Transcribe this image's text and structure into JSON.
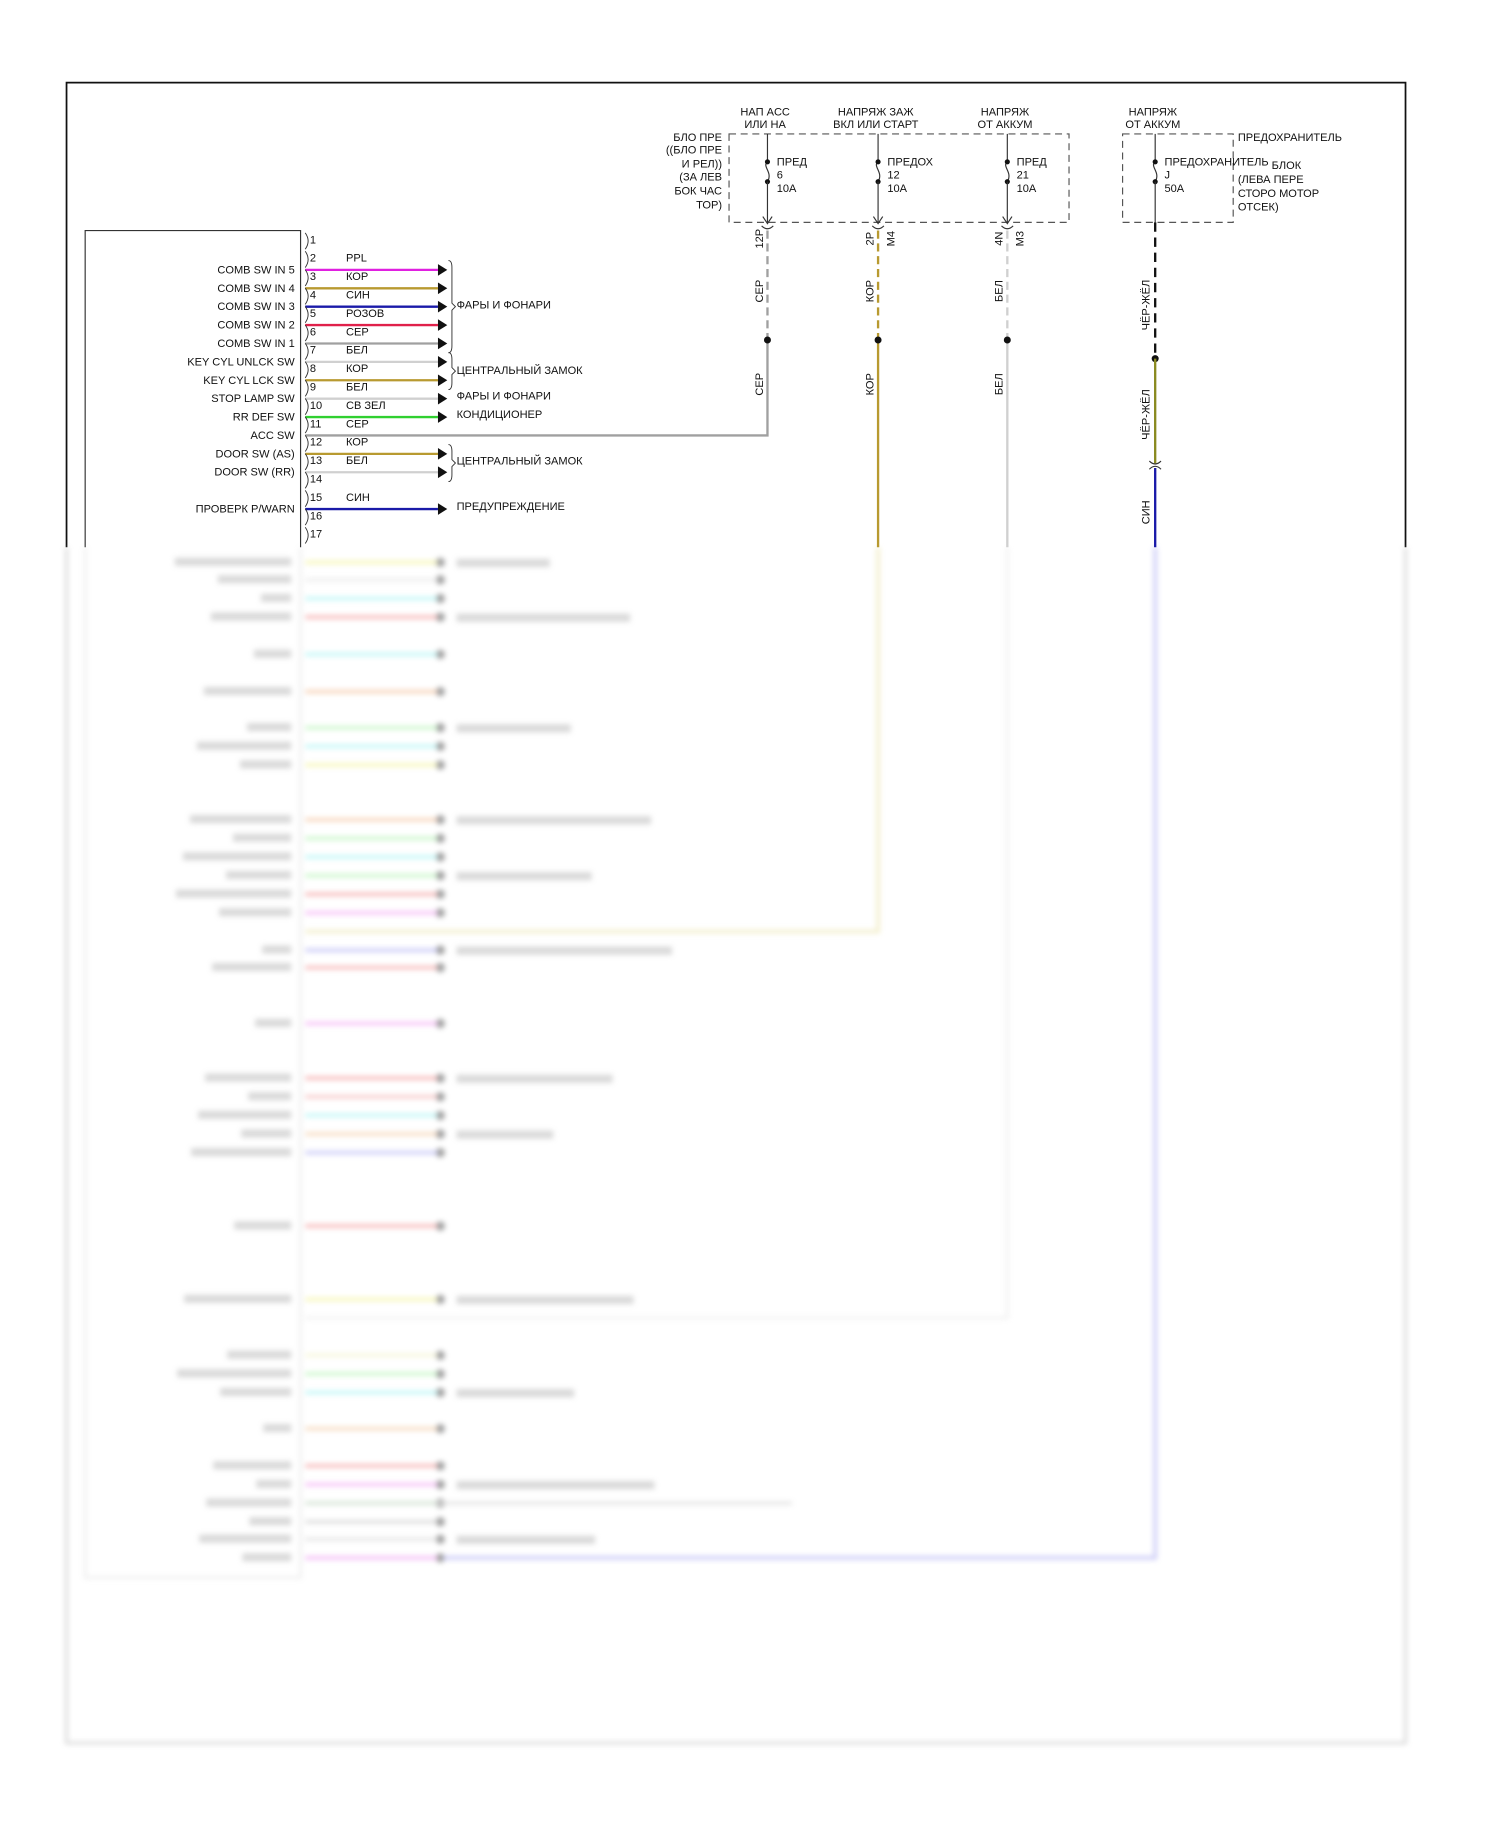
{
  "colors": {
    "ppl": "#e020e0",
    "kor": "#b89a30",
    "sin": "#1a1aa8",
    "rozov": "#e0204a",
    "ser": "#a0a0a0",
    "bel": "#d0d0d0",
    "sv_zel": "#30d030",
    "cher_zhel": "#8a8a20",
    "black": "#111111"
  },
  "fuse_block": {
    "label": [
      "БЛО ПРЕ",
      "((БЛО ПРЕ",
      "И РЕЛ))",
      "(ЗА ЛЕВ",
      "БОК ЧАС",
      "ТОР)"
    ]
  },
  "fuse_block_j": {
    "label": [
      "ПРЕДОХРАНИТЕЛЬ",
      "БЛОК",
      "(ЛЕВА ПЕРЕ",
      "СТОРО МОТОР",
      "ОТСЕК)"
    ]
  },
  "supplies": [
    {
      "title": [
        "НАП ACC",
        "ИЛИ НА"
      ],
      "fuse": [
        "ПРЕД",
        "6",
        "10A"
      ],
      "pins": [
        "12P",
        ""
      ],
      "wire": [
        "СЕР",
        "СЕР"
      ]
    },
    {
      "title": [
        "НАПРЯЖ ЗАЖ",
        "ВКЛ ИЛИ СТАРТ"
      ],
      "fuse": [
        "ПРЕДОХ",
        "12",
        "10A"
      ],
      "pins": [
        "2P",
        "M4"
      ],
      "wire": [
        "КОР",
        "КОР"
      ]
    },
    {
      "title": [
        "НАПРЯЖ",
        "ОТ АККУМ"
      ],
      "fuse": [
        "ПРЕД",
        "21",
        "10A"
      ],
      "pins": [
        "4N",
        "M3"
      ],
      "wire": [
        "БЕЛ",
        "БЕЛ"
      ]
    },
    {
      "title": [
        "НАПРЯЖ",
        "ОТ АККУМ"
      ],
      "fuse": [
        "ПРЕДОХРАНИТЕЛЬ",
        "J",
        "50A"
      ],
      "pins": [
        "",
        ""
      ],
      "wire": [
        "ЧЁР-ЖЁЛ",
        "ЧЁР-ЖЁЛ",
        "СИН"
      ]
    }
  ],
  "pins": [
    {
      "n": "1",
      "signal": "",
      "wire": "",
      "color": ""
    },
    {
      "n": "2",
      "signal": "COMB SW IN 5",
      "wire": "PPL",
      "color": "#e020e0"
    },
    {
      "n": "3",
      "signal": "COMB SW IN 4",
      "wire": "КОР",
      "color": "#b89a30"
    },
    {
      "n": "4",
      "signal": "COMB SW IN 3",
      "wire": "СИН",
      "color": "#1a1aa8"
    },
    {
      "n": "5",
      "signal": "COMB SW IN 2",
      "wire": "РОЗОВ",
      "color": "#e0204a"
    },
    {
      "n": "6",
      "signal": "COMB SW IN 1",
      "wire": "СЕР",
      "color": "#a0a0a0"
    },
    {
      "n": "7",
      "signal": "KEY CYL UNLCK SW",
      "wire": "БЕЛ",
      "color": "#d0d0d0"
    },
    {
      "n": "8",
      "signal": "KEY CYL LCK SW",
      "wire": "КОР",
      "color": "#b89a30"
    },
    {
      "n": "9",
      "signal": "STOP LAMP SW",
      "wire": "БЕЛ",
      "color": "#d0d0d0"
    },
    {
      "n": "10",
      "signal": "RR DEF SW",
      "wire": "СВ ЗЕЛ",
      "color": "#30d030"
    },
    {
      "n": "11",
      "signal": "ACC SW",
      "wire": "СЕР",
      "color": "#a0a0a0"
    },
    {
      "n": "12",
      "signal": "DOOR SW (AS)",
      "wire": "КОР",
      "color": "#b89a30"
    },
    {
      "n": "13",
      "signal": "DOOR SW (RR)",
      "wire": "БЕЛ",
      "color": "#d0d0d0"
    },
    {
      "n": "14",
      "signal": "",
      "wire": "",
      "color": ""
    },
    {
      "n": "15",
      "signal": "ПРОВЕРК P/WARN",
      "wire": "СИН",
      "color": "#1a1aa8"
    },
    {
      "n": "16",
      "signal": "",
      "wire": "",
      "color": ""
    },
    {
      "n": "17",
      "signal": "",
      "wire": "",
      "color": ""
    }
  ],
  "destinations": [
    "ФАРЫ И ФОНАРИ",
    "ЦЕНТРАЛЬНЫЙ ЗАМОК",
    "ФАРЫ И ФОНАРИ",
    "КОНДИЦИОНЕР",
    "ЦЕНТРАЛЬНЫЙ ЗАМОК",
    "ПРЕДУПРЕЖДЕНИЕ"
  ],
  "blurred_wire_colors": [
    "#f0f080",
    "#e0e0e0",
    "#90f0f0",
    "#f08080",
    "#90f0f0",
    "#f0b080",
    "#a0f0a0",
    "#90f0f0",
    "#f0f080",
    "#f0b080",
    "#a0f0a0",
    "#90f0f0",
    "#a0f0a0",
    "#f08080",
    "#f090f0",
    "#a0a0f0",
    "#f08080",
    "#f090f0",
    "#f08080",
    "#f0a0a0",
    "#90f0f0",
    "#f0c090",
    "#a0a0f0",
    "#f08080",
    "#f0f080",
    "#f0f0c0",
    "#a0f0a0",
    "#90f0f0",
    "#f0c090",
    "#f08080",
    "#f090f0",
    "#a0f0a0",
    "#c0c0c0",
    "#d0d0d0",
    "#f090f0",
    "#a0a0f0"
  ]
}
